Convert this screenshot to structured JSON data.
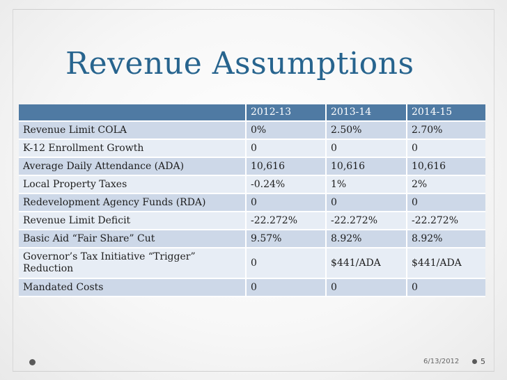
{
  "title": "Revenue Assumptions",
  "table": {
    "headers": [
      "",
      "2012-13",
      "2013-14",
      "2014-15"
    ],
    "rows": [
      [
        "Revenue Limit COLA",
        "0%",
        "2.50%",
        "2.70%"
      ],
      [
        "K-12 Enrollment Growth",
        "0",
        "0",
        "0"
      ],
      [
        "Average Daily Attendance (ADA)",
        "10,616",
        "10,616",
        "10,616"
      ],
      [
        "Local Property Taxes",
        "-0.24%",
        "1%",
        "2%"
      ],
      [
        "Redevelopment Agency Funds (RDA)",
        "0",
        "0",
        "0"
      ],
      [
        "Revenue Limit Deficit",
        "-22.272%",
        "-22.272%",
        "-22.272%"
      ],
      [
        "Basic Aid “Fair Share” Cut",
        "9.57%",
        "8.92%",
        "8.92%"
      ],
      [
        "Governor’s Tax Initiative “Trigger” Reduction",
        "0",
        "$441/ADA",
        "$441/ADA"
      ],
      [
        "Mandated Costs",
        "0",
        "0",
        "0"
      ]
    ]
  },
  "footer": {
    "date": "6/13/2012",
    "page": "5"
  },
  "colors": {
    "title": "#27648e",
    "header_bg": "#4f7aa3",
    "row_dark": "#cdd8e8",
    "row_light": "#e7edf5"
  }
}
